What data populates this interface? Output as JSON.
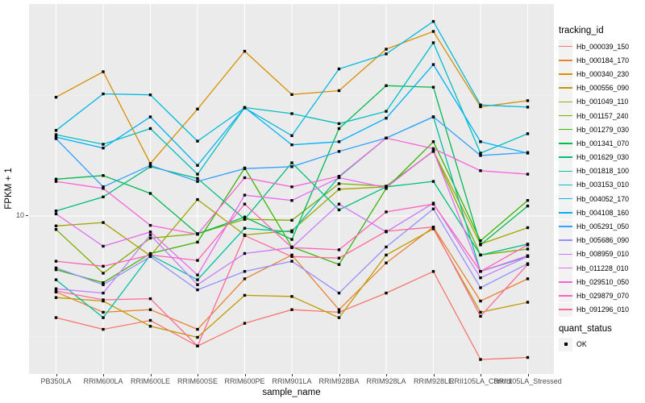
{
  "figure": {
    "colors": {
      "panel_background": "#EBEBEB",
      "grid": "#FFFFFF",
      "axis_text": "#4D4D4D",
      "title_text": "#000000",
      "tick_mark": "#333333",
      "legend_key_background": "#F2F2F2",
      "point": "#000000"
    }
  },
  "axes": {
    "x_title": "sample_name",
    "y_title": "FPKM + 1",
    "y_tick_label": "10"
  },
  "legend": {
    "tracking_title": "tracking_id",
    "quant_title": "quant_status",
    "quant_item_label": "OK"
  },
  "chart_data": {
    "type": "line",
    "title": "",
    "xlabel": "sample_name",
    "ylabel": "FPKM + 1",
    "y_scale": "log10",
    "y_ticks_shown": [
      10
    ],
    "ylim": [
      2.2,
      75
    ],
    "grid": "on",
    "legend_position": "right",
    "point_shape": "filled-square",
    "point_color": "#000000",
    "quant_status": "OK",
    "x_categories": [
      "PB350LA",
      "RRIM600LA",
      "RRIM600LE",
      "RRIM600SE",
      "RRIM600PE",
      "RRIM901LA",
      "RRIM928BA",
      "RRIM928LA",
      "RRIM928LE",
      "RRII105LA_Control",
      "RRII105LA_Stressed"
    ],
    "series": [
      {
        "name": "Hb_000039_150",
        "color": "#F8766D",
        "values": [
          3.8,
          3.4,
          3.7,
          2.9,
          3.6,
          4.1,
          4.0,
          4.8,
          5.9,
          2.55,
          2.6
        ]
      },
      {
        "name": "Hb_000184_170",
        "color": "#EA8331",
        "values": [
          4.85,
          4.0,
          4.1,
          3.4,
          5.5,
          6.9,
          4.1,
          6.4,
          9.0,
          4.45,
          5.5
        ]
      },
      {
        "name": "Hb_000340_230",
        "color": "#D89000",
        "values": [
          31,
          39.5,
          16.5,
          27.7,
          48,
          31.8,
          33,
          49,
          58,
          28.3,
          30
        ]
      },
      {
        "name": "Hb_000556_090",
        "color": "#C09B00",
        "values": [
          4.6,
          4.45,
          3.5,
          3.15,
          4.7,
          4.65,
          3.8,
          6.9,
          8.85,
          4.0,
          4.4
        ]
      },
      {
        "name": "Hb_001049_110",
        "color": "#A3A500",
        "values": [
          9.1,
          9.4,
          6.85,
          11.7,
          8.35,
          8.7,
          12.9,
          13.2,
          18.6,
          7.65,
          8.95
        ]
      },
      {
        "name": "Hb_001157_240",
        "color": "#7CAE00",
        "values": [
          8.8,
          5.8,
          8.1,
          8.45,
          9.7,
          9.6,
          13.6,
          13.3,
          18.5,
          6.9,
          7.3
        ]
      },
      {
        "name": "Hb_001279_030",
        "color": "#39B600",
        "values": [
          6.0,
          5.3,
          7.0,
          7.8,
          15.8,
          7.45,
          6.3,
          13.0,
          20.3,
          7.9,
          11.6
        ]
      },
      {
        "name": "Hb_001341_070",
        "color": "#00BB4E",
        "values": [
          14.2,
          14.7,
          12.4,
          8.45,
          9.9,
          8.0,
          23.0,
          34.6,
          34.1,
          7.6,
          11.0
        ]
      },
      {
        "name": "Hb_001629_030",
        "color": "#00BF7D",
        "values": [
          10.5,
          12.0,
          16.0,
          14.3,
          9.7,
          16.6,
          10.6,
          13.2,
          13.9,
          6.9,
          7.65
        ]
      },
      {
        "name": "Hb_001818_100",
        "color": "#00C1A3",
        "values": [
          5.45,
          3.8,
          6.9,
          5.45,
          8.9,
          8.6,
          14.5,
          21.0,
          25.7,
          5.9,
          6.8
        ]
      },
      {
        "name": "Hb_003153_010",
        "color": "#00BFC4",
        "values": [
          21.7,
          19.8,
          23.0,
          14.9,
          28.1,
          26.5,
          24.1,
          27.1,
          52.1,
          18.2,
          21.9
        ]
      },
      {
        "name": "Hb_004052_170",
        "color": "#00BAE0",
        "values": [
          22.6,
          32.0,
          31.7,
          20.4,
          28.0,
          21.5,
          40.6,
          46.8,
          63.8,
          28.8,
          28.2
        ]
      },
      {
        "name": "Hb_004108_160",
        "color": "#00B0F6",
        "values": [
          21.2,
          19.1,
          25.7,
          16.2,
          28.1,
          19.7,
          20.3,
          25.4,
          42.3,
          20.3,
          18.2
        ]
      },
      {
        "name": "Hb_005291_050",
        "color": "#35A2FF",
        "values": [
          20.9,
          13.2,
          16.2,
          13.9,
          15.7,
          16.0,
          18.5,
          21.0,
          25.7,
          17.8,
          18.3
        ]
      },
      {
        "name": "Hb_005686_090",
        "color": "#9590FF",
        "values": [
          6.1,
          5.2,
          6.8,
          4.95,
          5.9,
          6.5,
          4.8,
          7.45,
          10.7,
          5.05,
          6.35
        ]
      },
      {
        "name": "Hb_008959_010",
        "color": "#C77CFF",
        "values": [
          5.0,
          4.8,
          8.35,
          5.2,
          7.0,
          7.4,
          11.2,
          8.6,
          11.3,
          5.55,
          6.8
        ]
      },
      {
        "name": "Hb_011228_010",
        "color": "#E76BF3",
        "values": [
          10.2,
          7.5,
          8.6,
          5.7,
          12.2,
          11.6,
          14.4,
          13.1,
          18.6,
          5.9,
          6.85
        ]
      },
      {
        "name": "Hb_029510_050",
        "color": "#FA62DB",
        "values": [
          13.9,
          13.0,
          9.15,
          8.4,
          14.4,
          13.2,
          14.6,
          21.0,
          19.0,
          15.4,
          14.9
        ]
      },
      {
        "name": "Hb_029879_070",
        "color": "#FF62BC",
        "values": [
          6.5,
          6.2,
          6.9,
          6.55,
          11.2,
          7.4,
          7.25,
          10.4,
          11.2,
          5.9,
          7.6
        ]
      },
      {
        "name": "Hb_091296_010",
        "color": "#FF6A98",
        "values": [
          4.9,
          4.5,
          4.55,
          2.9,
          8.3,
          6.8,
          6.7,
          8.65,
          9.0,
          3.85,
          6.3
        ]
      }
    ]
  }
}
